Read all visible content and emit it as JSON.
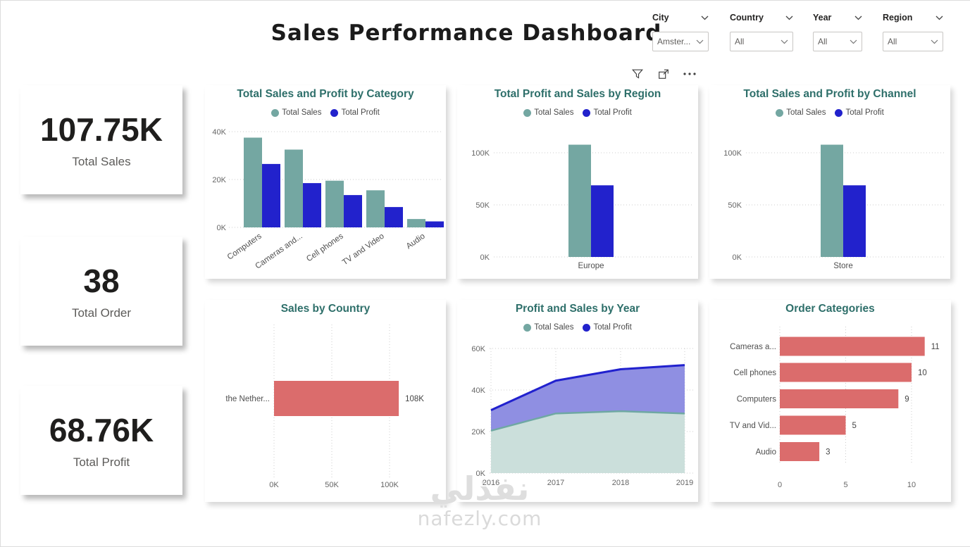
{
  "page": {
    "title": "Sales Performance Dashboard",
    "watermark_logo": "نفذلي",
    "watermark_text": "nafezly.com"
  },
  "toolbar": {
    "icons": [
      "filter-icon",
      "popout-icon",
      "more-options-icon"
    ]
  },
  "slicers": [
    {
      "label": "City",
      "value": "Amster..."
    },
    {
      "label": "Country",
      "value": "All"
    },
    {
      "label": "Year",
      "value": "All"
    },
    {
      "label": "Region",
      "value": "All"
    }
  ],
  "kpis": [
    {
      "value": "107.75K",
      "label": "Total Sales"
    },
    {
      "value": "38",
      "label": "Total Order"
    },
    {
      "value": "68.76K",
      "label": "Total Profit"
    }
  ],
  "colors": {
    "sales_teal": "#74a7a2",
    "profit_blue": "#2222cc",
    "bar_salmon": "#db6c6c",
    "title_teal": "#2e6f6a",
    "area_teal_fill": "#cbdfdb",
    "area_teal_line": "#6fa8a3",
    "area_blue_fill": "#8f8fe2",
    "area_blue_line": "#2121ce"
  },
  "chart_data": [
    {
      "id": "category",
      "type": "bar",
      "title": "Total Sales and Profit by Category",
      "legend": [
        "Total Sales",
        "Total Profit"
      ],
      "categories": [
        "Computers",
        "Cameras and...",
        "Cell phones",
        "TV and Video",
        "Audio"
      ],
      "series": [
        {
          "name": "Total Sales",
          "values": [
            37500,
            32500,
            19500,
            15500,
            3500
          ]
        },
        {
          "name": "Total Profit",
          "values": [
            26500,
            18500,
            13500,
            8500,
            2500
          ]
        }
      ],
      "yticks": [
        0,
        20000,
        40000
      ],
      "ytick_labels": [
        "0K",
        "20K",
        "40K"
      ],
      "ylim": [
        0,
        40000
      ],
      "grid": "dotted-horizontal",
      "legend_position": "top"
    },
    {
      "id": "region",
      "type": "bar",
      "title": "Total Profit and Sales by Region",
      "legend": [
        "Total Sales",
        "Total Profit"
      ],
      "categories": [
        "Europe"
      ],
      "series": [
        {
          "name": "Total Sales",
          "values": [
            107750
          ]
        },
        {
          "name": "Total Profit",
          "values": [
            68760
          ]
        }
      ],
      "yticks": [
        0,
        50000,
        100000
      ],
      "ytick_labels": [
        "0K",
        "50K",
        "100K"
      ],
      "ylim": [
        0,
        100000
      ],
      "grid": "dotted-horizontal",
      "legend_position": "top"
    },
    {
      "id": "channel",
      "type": "bar",
      "title": "Total Sales and Profit by Channel",
      "legend": [
        "Total Sales",
        "Total Profit"
      ],
      "categories": [
        "Store"
      ],
      "series": [
        {
          "name": "Total Sales",
          "values": [
            107750
          ]
        },
        {
          "name": "Total Profit",
          "values": [
            68760
          ]
        }
      ],
      "yticks": [
        0,
        50000,
        100000
      ],
      "ytick_labels": [
        "0K",
        "50K",
        "100K"
      ],
      "ylim": [
        0,
        100000
      ],
      "grid": "dotted-horizontal",
      "legend_position": "top"
    },
    {
      "id": "country",
      "type": "bar",
      "orientation": "horizontal",
      "title": "Sales by Country",
      "categories": [
        "the Nether..."
      ],
      "values": [
        108000
      ],
      "value_labels": [
        "108K"
      ],
      "xticks": [
        0,
        50000,
        100000
      ],
      "xtick_labels": [
        "0K",
        "50K",
        "100K"
      ],
      "xlim": [
        0,
        115000
      ],
      "grid": "dotted-vertical"
    },
    {
      "id": "year",
      "type": "area",
      "stacked": true,
      "title": "Profit and Sales by Year",
      "legend": [
        "Total Sales",
        "Total Profit"
      ],
      "x": [
        2016,
        2017,
        2018,
        2019
      ],
      "series": [
        {
          "name": "Total Sales",
          "values": [
            20400,
            28700,
            29800,
            28700
          ]
        },
        {
          "name": "Total Profit",
          "values": [
            9900,
            15800,
            20200,
            23300
          ]
        }
      ],
      "yticks": [
        0,
        20000,
        40000,
        60000
      ],
      "ytick_labels": [
        "0K",
        "20K",
        "40K",
        "60K"
      ],
      "ylim": [
        0,
        60000
      ],
      "grid": "dotted-both",
      "legend_position": "top"
    },
    {
      "id": "orders",
      "type": "bar",
      "orientation": "horizontal",
      "title": "Order Categories",
      "categories": [
        "Cameras a...",
        "Cell phones",
        "Computers",
        "TV and Vid...",
        "Audio"
      ],
      "values": [
        11,
        10,
        9,
        5,
        3
      ],
      "value_labels": [
        "11",
        "10",
        "9",
        "5",
        "3"
      ],
      "xticks": [
        0,
        5,
        10
      ],
      "xtick_labels": [
        "0",
        "5",
        "10"
      ],
      "xlim": [
        0,
        12.3
      ],
      "grid": "dotted-vertical"
    }
  ]
}
